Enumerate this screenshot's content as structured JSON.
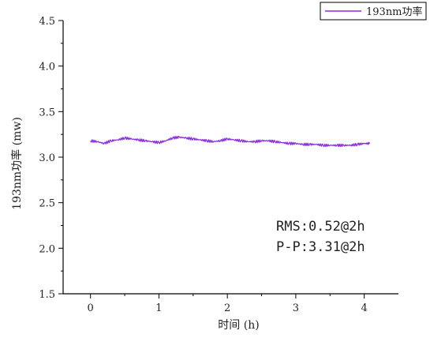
{
  "chart_data": {
    "type": "line",
    "title": "",
    "xlabel": "时间 (h)",
    "ylabel": "193nm功率 (mw)",
    "xlim": [
      -0.4,
      4.5
    ],
    "ylim": [
      1.5,
      4.5
    ],
    "xticks": [
      "0",
      "1",
      "2",
      "3",
      "4"
    ],
    "yticks": [
      "1.5",
      "2.0",
      "2.5",
      "3.0",
      "3.5",
      "4.0",
      "4.5"
    ],
    "grid": false,
    "legend_position": "top-right",
    "colors": {
      "series": "#8a2be2",
      "axis": "#000000"
    },
    "series": [
      {
        "name": "193nm功率",
        "x": [
          0,
          0.1,
          0.2,
          0.3,
          0.4,
          0.5,
          0.6,
          0.7,
          0.8,
          0.9,
          1.0,
          1.1,
          1.2,
          1.3,
          1.4,
          1.5,
          1.6,
          1.7,
          1.8,
          1.9,
          2.0,
          2.1,
          2.2,
          2.3,
          2.4,
          2.5,
          2.6,
          2.7,
          2.8,
          2.9,
          3.0,
          3.1,
          3.2,
          3.3,
          3.4,
          3.5,
          3.6,
          3.7,
          3.8,
          3.9,
          4.0,
          4.08
        ],
        "values": [
          3.18,
          3.17,
          3.15,
          3.18,
          3.19,
          3.21,
          3.2,
          3.19,
          3.18,
          3.17,
          3.16,
          3.18,
          3.21,
          3.22,
          3.21,
          3.2,
          3.19,
          3.18,
          3.17,
          3.18,
          3.2,
          3.19,
          3.18,
          3.17,
          3.17,
          3.18,
          3.18,
          3.17,
          3.16,
          3.15,
          3.15,
          3.14,
          3.14,
          3.14,
          3.13,
          3.13,
          3.13,
          3.13,
          3.13,
          3.14,
          3.15,
          3.15
        ]
      }
    ],
    "annotations": [
      "RMS:0.52@2h",
      "P-P:3.31@2h"
    ]
  }
}
